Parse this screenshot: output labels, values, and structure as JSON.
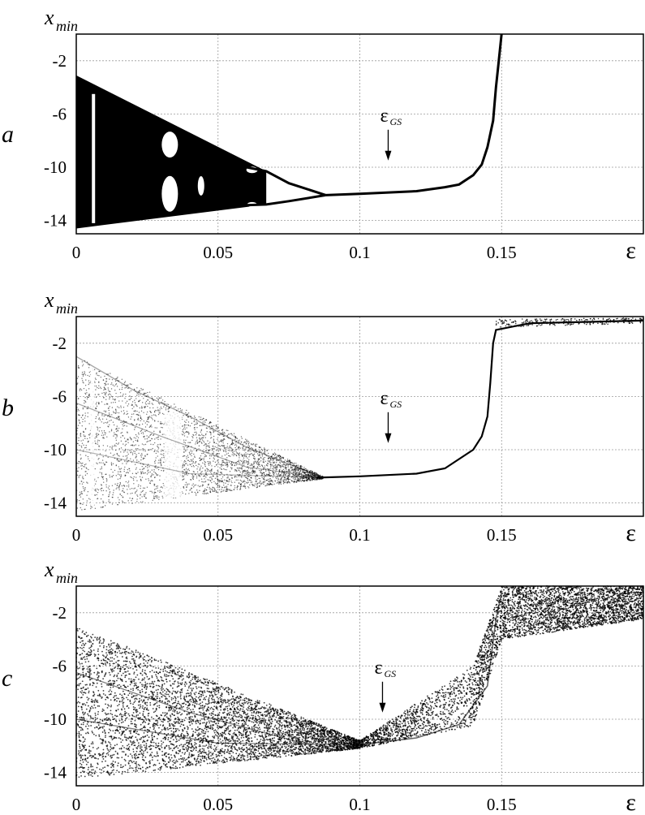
{
  "chart_data": [
    {
      "type": "scatter",
      "panel_label": "a",
      "ylabel": "x",
      "ylabel_subscript": "min",
      "xlabel": "ε",
      "xlim": [
        0,
        0.2
      ],
      "ylim": [
        -15,
        0
      ],
      "x_ticks": [
        0,
        0.05,
        0.1,
        0.15
      ],
      "x_tick_labels": [
        "0",
        "0.05",
        "0.1",
        "0.15"
      ],
      "y_ticks": [
        -2,
        -6,
        -10,
        -14
      ],
      "y_tick_labels": [
        "-2",
        "-6",
        "-10",
        "-14"
      ],
      "grid": true,
      "annotation": {
        "text": "ε",
        "subscript": "GS",
        "x": 0.11,
        "y": -9.5
      },
      "series": [
        {
          "values": [
            {
              "x": 0,
              "y_low": -14.6,
              "y_high": -3.1
            },
            {
              "x": 0.02,
              "y_low": -14.0,
              "y_high": -5.0
            },
            {
              "x": 0.04,
              "y_low": -13.4,
              "y_high": -7.0
            },
            {
              "x": 0.06,
              "y_low": -12.9,
              "y_high": -9.0
            },
            {
              "x": 0.067,
              "y_low": -12.8,
              "y_high": -10.3
            },
            {
              "x": 0.088,
              "y_low": -12.1,
              "y_high": -12.1
            },
            {
              "x": 0.1,
              "y": -12.0
            },
            {
              "x": 0.12,
              "y": -11.8
            },
            {
              "x": 0.135,
              "y": -11.3
            },
            {
              "x": 0.14,
              "y": -10.6
            },
            {
              "x": 0.145,
              "y": -8.5
            },
            {
              "x": 0.148,
              "y": -4.0
            },
            {
              "x": 0.15,
              "y": 0.0
            }
          ]
        }
      ]
    },
    {
      "type": "scatter",
      "panel_label": "b",
      "ylabel": "x",
      "ylabel_subscript": "min",
      "xlabel": "ε",
      "xlim": [
        0,
        0.2
      ],
      "ylim": [
        -15,
        0
      ],
      "x_ticks": [
        0,
        0.05,
        0.1,
        0.15
      ],
      "x_tick_labels": [
        "0",
        "0.05",
        "0.1",
        "0.15"
      ],
      "y_ticks": [
        -2,
        -6,
        -10,
        -14
      ],
      "y_tick_labels": [
        "-2",
        "-6",
        "-10",
        "-14"
      ],
      "grid": true,
      "annotation": {
        "text": "ε",
        "subscript": "GS",
        "x": 0.11,
        "y": -9.5
      },
      "series": [
        {
          "values": [
            {
              "x": 0,
              "y_low": -14.6,
              "y_high": -3.0
            },
            {
              "x": 0.04,
              "y_low": -13.6,
              "y_high": -7.0
            },
            {
              "x": 0.08,
              "y_low": -12.6,
              "y_high": -11.2
            },
            {
              "x": 0.09,
              "y": -12.1
            },
            {
              "x": 0.1,
              "y": -12.0
            },
            {
              "x": 0.12,
              "y": -11.8
            },
            {
              "x": 0.14,
              "y": -10.0
            },
            {
              "x": 0.145,
              "y": -7.5
            },
            {
              "x": 0.148,
              "y": -1.0
            },
            {
              "x": 0.16,
              "y": -0.5
            },
            {
              "x": 0.2,
              "y": -0.3
            }
          ]
        }
      ]
    },
    {
      "type": "scatter",
      "panel_label": "c",
      "ylabel": "x",
      "ylabel_subscript": "min",
      "xlabel": "ε",
      "xlim": [
        0,
        0.2
      ],
      "ylim": [
        -15,
        0
      ],
      "x_ticks": [
        0,
        0.05,
        0.1,
        0.15
      ],
      "x_tick_labels": [
        "0",
        "0.05",
        "0.1",
        "0.15"
      ],
      "y_ticks": [
        -2,
        -6,
        -10,
        -14
      ],
      "y_tick_labels": [
        "-2",
        "-6",
        "-10",
        "-14"
      ],
      "grid": true,
      "annotation": {
        "text": "ε",
        "subscript": "GS",
        "x": 0.108,
        "y": -9.5
      },
      "series": [
        {
          "values": [
            {
              "x": 0,
              "y_low": -14.5,
              "y_high": -3.0
            },
            {
              "x": 0.05,
              "y_low": -13.2,
              "y_high": -7.2
            },
            {
              "x": 0.08,
              "y_low": -12.5,
              "y_high": -10.6
            },
            {
              "x": 0.1,
              "y_low": -12.2,
              "y_high": -11.6
            },
            {
              "x": 0.12,
              "y_low": -12.0,
              "y_high": -11.0
            },
            {
              "x": 0.14,
              "y_low": -10.5,
              "y_high": -6.0
            },
            {
              "x": 0.15,
              "y_low": -4.0,
              "y_high": 0.0
            },
            {
              "x": 0.18,
              "y_low": -3.0,
              "y_high": 0.0
            },
            {
              "x": 0.2,
              "y_low": -2.5,
              "y_high": 0.0
            }
          ]
        }
      ]
    }
  ]
}
